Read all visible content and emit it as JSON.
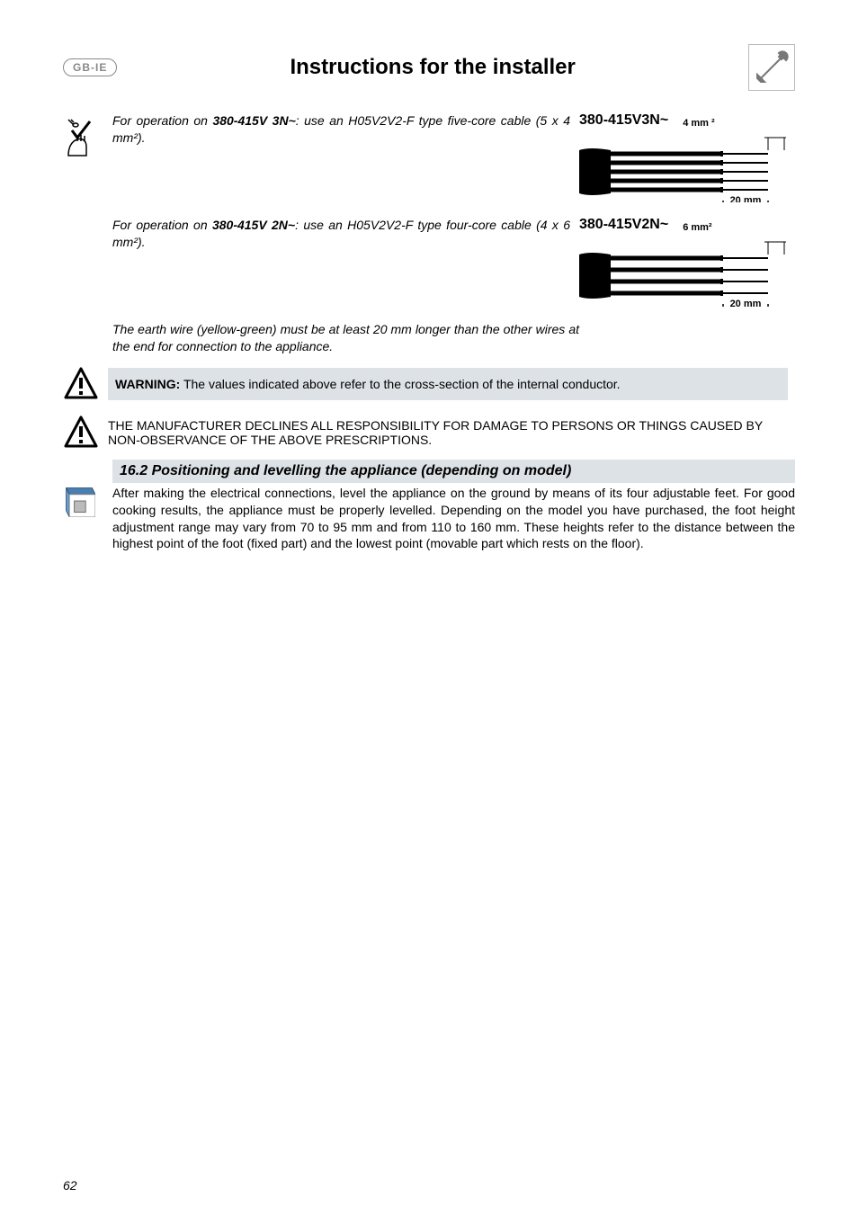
{
  "header": {
    "language_code": "GB-IE",
    "title": "Instructions for the installer"
  },
  "cable_specs": [
    {
      "text_pre": "For operation on ",
      "bold": "380-415V 3N~",
      "text_post": ": use an H05V2V2-F type five-core cable (5 x 4 mm²).",
      "diagram": {
        "title": "380-415V3N~",
        "cross_section": "4 mm ²",
        "strip_length": "20 mm",
        "wire_count": 5
      }
    },
    {
      "text_pre": "For operation on ",
      "bold": "380-415V 2N~",
      "text_post": ": use an H05V2V2-F type four-core cable (4 x 6 mm²).",
      "diagram": {
        "title": "380-415V2N~",
        "cross_section": "6 mm²",
        "strip_length": "20 mm",
        "wire_count": 4
      }
    }
  ],
  "earth_note": "The earth wire (yellow-green) must be at least 20 mm longer than the other wires at the end for connection to the appliance.",
  "warning_values": {
    "label": "WARNING:",
    "text": " The values indicated above refer to the cross-section of the internal conductor."
  },
  "warning_disclaimer": "THE MANUFACTURER DECLINES ALL RESPONSIBILITY FOR DAMAGE TO PERSONS OR THINGS CAUSED BY NON-OBSERVANCE OF THE ABOVE PRESCRIPTIONS.",
  "section_16_2": {
    "heading": "16.2  Positioning and levelling the appliance (depending on model)",
    "body": "After making the electrical connections, level the appliance on the ground by means of its four adjustable feet. For good cooking results, the appliance must be properly levelled. Depending on the model you have purchased, the foot height adjustment range may vary from 70 to 95 mm and from 110 to 160 mm. These heights refer to the distance between the highest point of the foot (fixed part) and the lowest point (movable part which rests on the floor)."
  },
  "page_number": "62",
  "colors": {
    "shade": "#dde2e6",
    "line": "#000000",
    "grey_text": "#888888"
  }
}
